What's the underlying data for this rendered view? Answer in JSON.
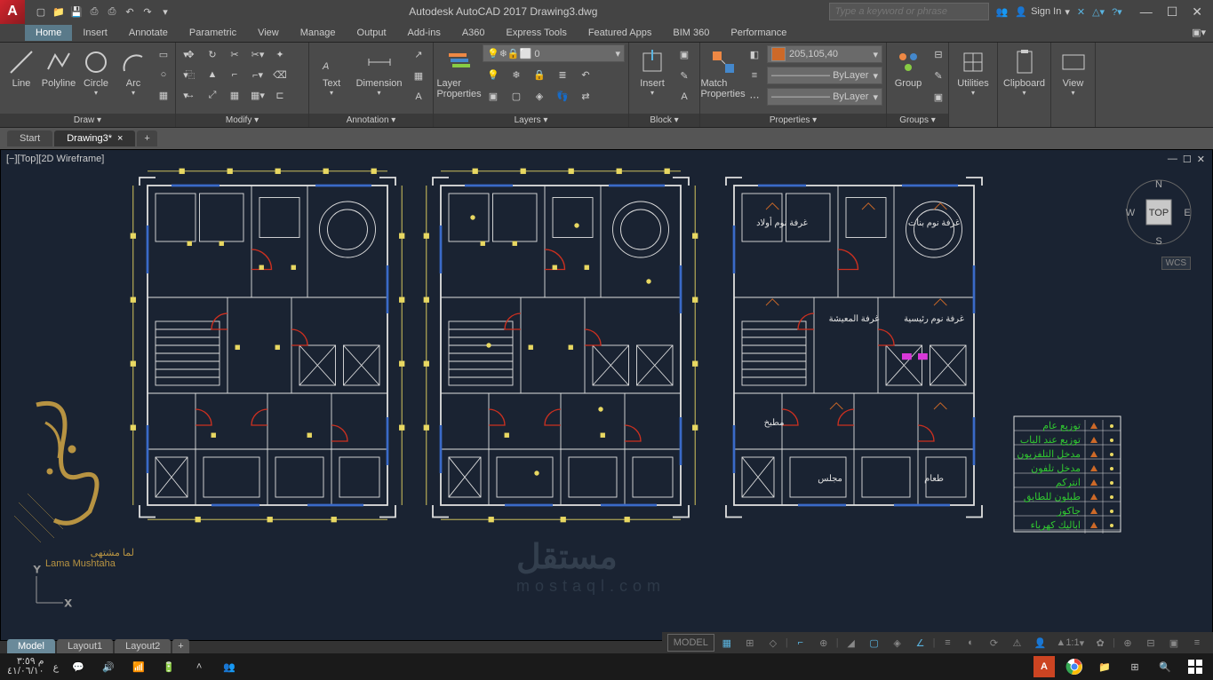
{
  "app": {
    "title": "Autodesk AutoCAD 2017   Drawing3.dwg",
    "search_placeholder": "Type a keyword or phrase",
    "signin": "Sign In"
  },
  "qat_icons": [
    "new",
    "open",
    "save",
    "saveas",
    "plot",
    "undo",
    "redo"
  ],
  "tabs": [
    "Home",
    "Insert",
    "Annotate",
    "Parametric",
    "View",
    "Manage",
    "Output",
    "Add-ins",
    "A360",
    "Express Tools",
    "Featured Apps",
    "BIM 360",
    "Performance"
  ],
  "active_tab": "Home",
  "ribbon": {
    "draw": {
      "title": "Draw ▾",
      "btns": [
        "Line",
        "Polyline",
        "Circle",
        "Arc"
      ]
    },
    "modify": {
      "title": "Modify ▾"
    },
    "annotation": {
      "title": "Annotation ▾",
      "text": "Text",
      "dim": "Dimension"
    },
    "layers": {
      "title": "Layers ▾",
      "lp": "Layer\nProperties",
      "current": "0"
    },
    "block": {
      "title": "Block ▾",
      "insert": "Insert"
    },
    "properties": {
      "title": "Properties ▾",
      "match": "Match\nProperties",
      "color": "205,105,40",
      "lw": "ByLayer",
      "lt": "ByLayer"
    },
    "groups": {
      "title": "Groups ▾",
      "group": "Group"
    },
    "utilities": {
      "title": "Utilities ▾",
      "u": "Utilities"
    },
    "clipboard": {
      "title": "Clipboard ▾",
      "c": "Clipboard"
    },
    "view": {
      "title": "View ▾",
      "v": "View"
    }
  },
  "filetabs": [
    {
      "label": "Start"
    },
    {
      "label": "Drawing3*",
      "active": true
    }
  ],
  "viewport": {
    "label": "[−][Top][2D Wireframe]",
    "nav": {
      "n": "N",
      "s": "S",
      "e": "E",
      "w": "W",
      "top": "TOP"
    },
    "wcs": "WCS"
  },
  "model_tabs": [
    {
      "label": "Model",
      "active": true
    },
    {
      "label": "Layout1"
    },
    {
      "label": "Layout2"
    }
  ],
  "statusbar": {
    "model": "MODEL",
    "scale": "1:1"
  },
  "taskbar": {
    "time": "م ٣:٥٩",
    "date": "٤١/٠٦/١٠",
    "lang": "ع"
  },
  "watermark": {
    "site": "mostaql.com",
    "logo": "Lama Mushtaha"
  },
  "colors": {
    "bg": "#1a2332",
    "wall": "#e0e0e0",
    "door": "#cc3020",
    "dim": "#e8d862",
    "blue": "#3a6ac8",
    "magenta": "#d838d8",
    "green": "#30c830",
    "orange": "#cd6928",
    "cyan": "#5ab4e0"
  },
  "legend": {
    "rows": [
      {
        "c": "#30c830",
        "t": "توزيع عام"
      },
      {
        "c": "#30c830",
        "t": "توزيع عند الباب"
      },
      {
        "c": "#30c830",
        "t": "مدخل التلفزيون"
      },
      {
        "c": "#30c830",
        "t": "مدخل تلفون"
      },
      {
        "c": "#30c830",
        "t": "انتركم"
      },
      {
        "c": "#30c830",
        "t": "طبلون للطابق"
      },
      {
        "c": "#30c830",
        "t": "جاكوز"
      },
      {
        "c": "#30c830",
        "t": "اباليك كهرباء"
      }
    ]
  }
}
